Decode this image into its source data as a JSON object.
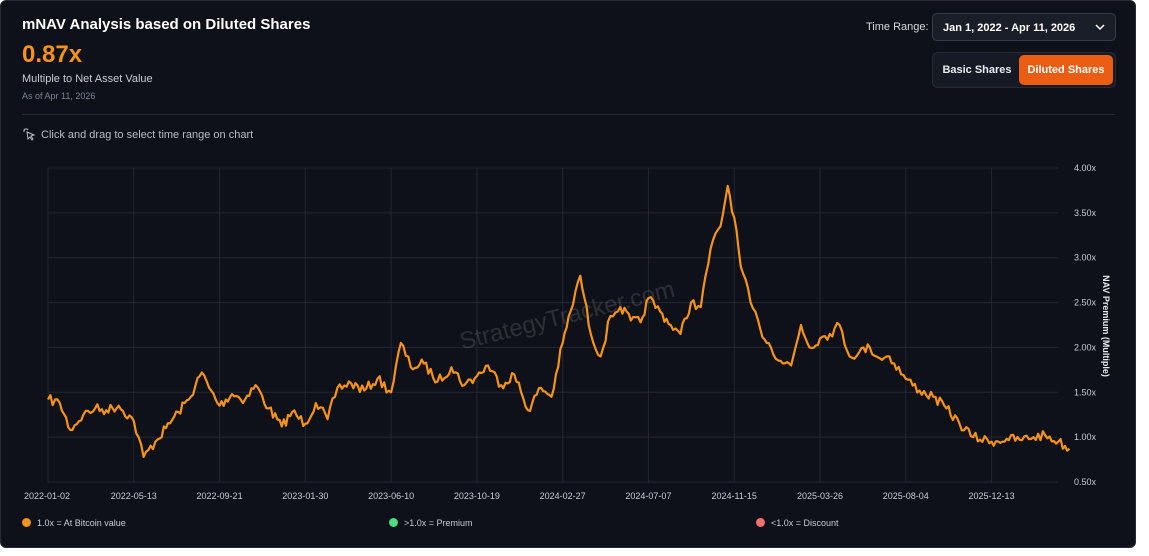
{
  "header": {
    "title": "mNAV Analysis based on Diluted Shares",
    "value": "0.87x",
    "value_label": "Multiple to Net Asset Value",
    "as_of": "As of Apr 11, 2026"
  },
  "controls": {
    "time_range_label": "Time Range:",
    "time_range_value": "Jan 1, 2022 - Apr 11, 2026",
    "basic_label": "Basic Shares",
    "diluted_label": "Diluted Shares",
    "active": "diluted"
  },
  "hint": "Click and drag to select time range on chart",
  "watermark": "StrategyTracker.com",
  "legend": [
    {
      "label": "1.0x = At Bitcoin value",
      "color": "#f7931a"
    },
    {
      "label": ">1.0x = Premium",
      "color": "#4ade80"
    },
    {
      "label": "<1.0x = Discount",
      "color": "#f87171"
    }
  ],
  "colors": {
    "line": "#f7931a",
    "accent": "#ea5d12"
  },
  "chart_data": {
    "type": "line",
    "title": "mNAV Analysis based on Diluted Shares",
    "ylabel": "NAV Premium (Multiple)",
    "xlabel": "",
    "ylim": [
      0.5,
      4.0
    ],
    "yticks": [
      "4.00x",
      "3.50x",
      "3.00x",
      "2.50x",
      "2.00x",
      "1.50x",
      "1.00x",
      "0.50x"
    ],
    "ytick_values": [
      4.0,
      3.5,
      3.0,
      2.5,
      2.0,
      1.5,
      1.0,
      0.5
    ],
    "xticks": [
      "2022-01-02",
      "2022-05-13",
      "2022-09-21",
      "2023-01-30",
      "2023-06-10",
      "2023-10-19",
      "2024-02-27",
      "2024-07-07",
      "2024-11-15",
      "2025-03-26",
      "2025-08-04",
      "2025-12-13"
    ],
    "grid": true,
    "series": [
      {
        "color": "#f7931a",
        "x": [
          "2022-01-02",
          "2022-01-20",
          "2022-02-05",
          "2022-02-25",
          "2022-03-15",
          "2022-04-01",
          "2022-04-20",
          "2022-05-13",
          "2022-05-28",
          "2022-06-15",
          "2022-07-01",
          "2022-07-20",
          "2022-08-05",
          "2022-08-25",
          "2022-09-05",
          "2022-09-21",
          "2022-10-10",
          "2022-10-30",
          "2022-11-15",
          "2022-12-05",
          "2022-12-25",
          "2023-01-10",
          "2023-01-30",
          "2023-02-15",
          "2023-03-05",
          "2023-03-20",
          "2023-04-10",
          "2023-04-30",
          "2023-05-20",
          "2023-06-10",
          "2023-06-25",
          "2023-07-10",
          "2023-07-30",
          "2023-08-20",
          "2023-09-10",
          "2023-09-30",
          "2023-10-19",
          "2023-11-05",
          "2023-11-25",
          "2023-12-15",
          "2024-01-05",
          "2024-01-25",
          "2024-02-10",
          "2024-02-27",
          "2024-03-10",
          "2024-03-25",
          "2024-04-10",
          "2024-04-25",
          "2024-05-10",
          "2024-05-25",
          "2024-06-10",
          "2024-06-25",
          "2024-07-07",
          "2024-07-25",
          "2024-08-10",
          "2024-08-25",
          "2024-09-10",
          "2024-09-25",
          "2024-10-10",
          "2024-10-25",
          "2024-11-05",
          "2024-11-15",
          "2024-11-25",
          "2024-12-10",
          "2024-12-25",
          "2025-01-10",
          "2025-01-25",
          "2025-02-10",
          "2025-02-25",
          "2025-03-10",
          "2025-03-26",
          "2025-04-10",
          "2025-04-25",
          "2025-05-10",
          "2025-05-25",
          "2025-06-10",
          "2025-06-25",
          "2025-07-10",
          "2025-08-04",
          "2025-08-25",
          "2025-09-15",
          "2025-10-05",
          "2025-10-25",
          "2025-11-15",
          "2025-12-13",
          "2026-01-05",
          "2026-01-25",
          "2026-02-15",
          "2026-03-05",
          "2026-03-25",
          "2026-04-11"
        ],
        "values": [
          1.42,
          1.38,
          1.08,
          1.25,
          1.32,
          1.3,
          1.35,
          1.18,
          0.78,
          0.95,
          1.1,
          1.28,
          1.42,
          1.72,
          1.55,
          1.35,
          1.48,
          1.42,
          1.58,
          1.32,
          1.12,
          1.28,
          1.15,
          1.38,
          1.2,
          1.55,
          1.6,
          1.52,
          1.65,
          1.5,
          2.05,
          1.78,
          1.82,
          1.62,
          1.78,
          1.58,
          1.68,
          1.8,
          1.58,
          1.7,
          1.3,
          1.55,
          1.45,
          2.05,
          2.4,
          2.8,
          2.15,
          1.9,
          2.35,
          2.45,
          2.3,
          2.28,
          2.55,
          2.4,
          2.25,
          2.15,
          2.5,
          2.45,
          3.1,
          3.35,
          3.8,
          3.45,
          2.9,
          2.5,
          2.2,
          2.0,
          1.85,
          1.8,
          2.25,
          2.0,
          2.1,
          2.15,
          2.25,
          1.9,
          1.95,
          2.0,
          1.88,
          1.9,
          1.65,
          1.52,
          1.45,
          1.32,
          1.15,
          1.0,
          0.95,
          0.98,
          0.97,
          1.0,
          1.02,
          0.95,
          0.87
        ]
      }
    ]
  }
}
